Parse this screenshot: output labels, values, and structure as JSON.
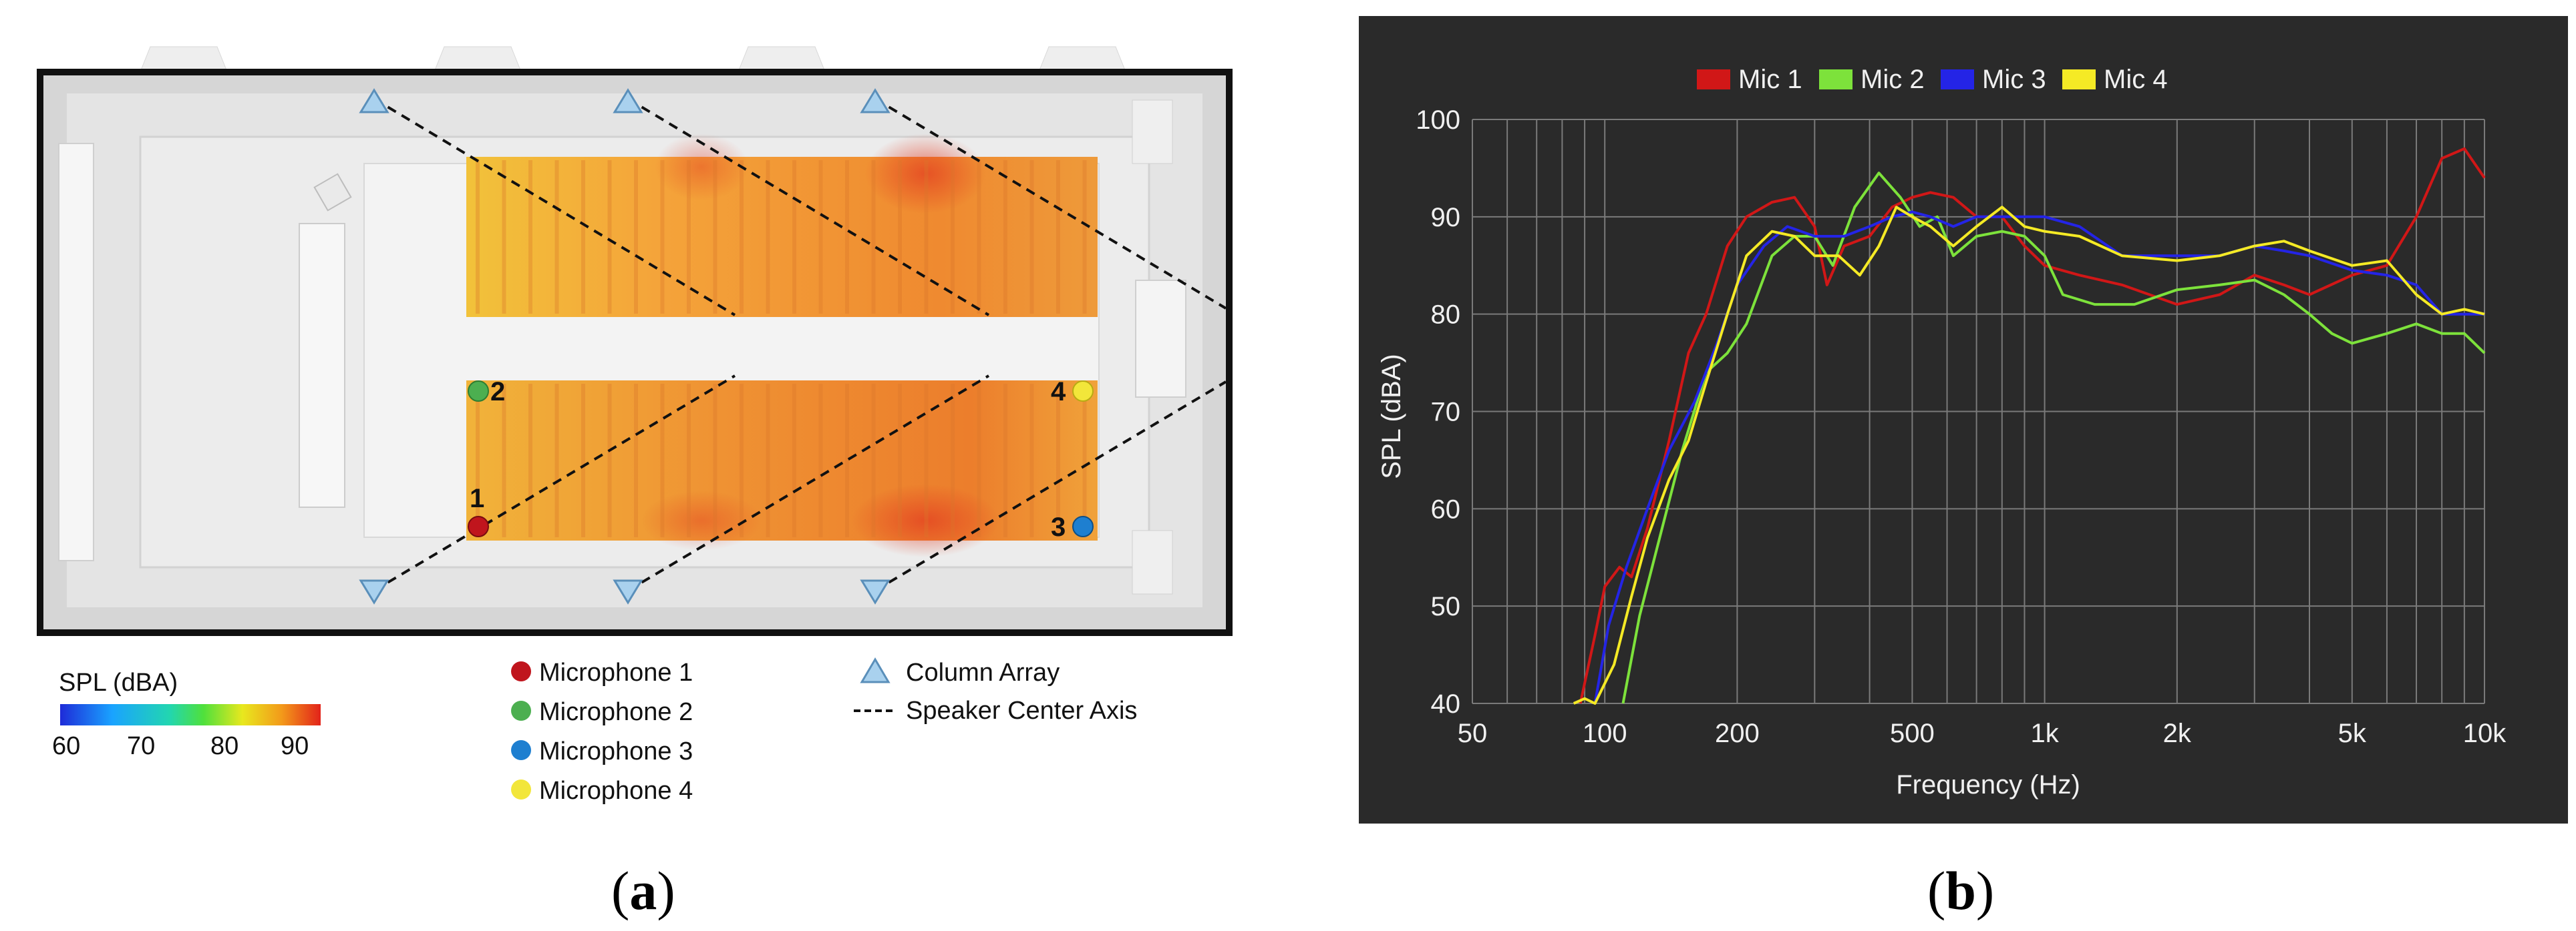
{
  "panels": {
    "a_label": "a",
    "b_label": "b"
  },
  "room": {
    "scale_title": "SPL (dBA)",
    "scale_ticks": [
      "60",
      "70",
      "80",
      "90"
    ],
    "mic_labels": [
      "1",
      "2",
      "3",
      "4"
    ],
    "legend": [
      {
        "label": "Microphone 1",
        "color": "#c0151d"
      },
      {
        "label": "Microphone 2",
        "color": "#4caf50"
      },
      {
        "label": "Microphone 3",
        "color": "#1e7fd0"
      },
      {
        "label": "Microphone 4",
        "color": "#f2e63a"
      }
    ],
    "legend_right": {
      "array": "Column Array",
      "axis": "Speaker Center Axis"
    }
  },
  "chart_data": {
    "type": "line",
    "xlabel": "Frequency (Hz)",
    "ylabel": "SPL (dBA)",
    "xscale": "log",
    "xlim": [
      50,
      10000
    ],
    "ylim": [
      40,
      100
    ],
    "x_ticks": [
      {
        "v": 50,
        "l": "50"
      },
      {
        "v": 100,
        "l": "100"
      },
      {
        "v": 200,
        "l": "200"
      },
      {
        "v": 500,
        "l": "500"
      },
      {
        "v": 1000,
        "l": "1k"
      },
      {
        "v": 2000,
        "l": "2k"
      },
      {
        "v": 5000,
        "l": "5k"
      },
      {
        "v": 10000,
        "l": "10k"
      }
    ],
    "y_ticks": [
      40,
      50,
      60,
      70,
      80,
      90,
      100
    ],
    "grid": true,
    "legend_position": "top",
    "series": [
      {
        "name": "Mic 1",
        "color": "#d11717",
        "points": [
          [
            88,
            40
          ],
          [
            95,
            47
          ],
          [
            100,
            52
          ],
          [
            108,
            54
          ],
          [
            115,
            53
          ],
          [
            125,
            58
          ],
          [
            140,
            67
          ],
          [
            155,
            76
          ],
          [
            170,
            80
          ],
          [
            190,
            87
          ],
          [
            210,
            90
          ],
          [
            240,
            91.5
          ],
          [
            270,
            92
          ],
          [
            300,
            89
          ],
          [
            320,
            83
          ],
          [
            350,
            87
          ],
          [
            400,
            88
          ],
          [
            450,
            91
          ],
          [
            500,
            92
          ],
          [
            550,
            92.5
          ],
          [
            620,
            92
          ],
          [
            700,
            90
          ],
          [
            800,
            90
          ],
          [
            900,
            87
          ],
          [
            1000,
            85
          ],
          [
            1200,
            84
          ],
          [
            1500,
            83
          ],
          [
            2000,
            81
          ],
          [
            2500,
            82
          ],
          [
            3000,
            84
          ],
          [
            3500,
            83
          ],
          [
            4000,
            82
          ],
          [
            5000,
            84
          ],
          [
            6000,
            85
          ],
          [
            7000,
            90
          ],
          [
            8000,
            96
          ],
          [
            9000,
            97
          ],
          [
            10000,
            94
          ]
        ]
      },
      {
        "name": "Mic 2",
        "color": "#7de23b",
        "points": [
          [
            110,
            40
          ],
          [
            120,
            49
          ],
          [
            135,
            58
          ],
          [
            150,
            66
          ],
          [
            170,
            74
          ],
          [
            190,
            76
          ],
          [
            210,
            79
          ],
          [
            240,
            86
          ],
          [
            270,
            88
          ],
          [
            300,
            88
          ],
          [
            330,
            85
          ],
          [
            370,
            91
          ],
          [
            420,
            94.5
          ],
          [
            470,
            92
          ],
          [
            520,
            89
          ],
          [
            570,
            90
          ],
          [
            620,
            86
          ],
          [
            700,
            88
          ],
          [
            800,
            88.5
          ],
          [
            900,
            88
          ],
          [
            1000,
            86
          ],
          [
            1100,
            82
          ],
          [
            1300,
            81
          ],
          [
            1600,
            81
          ],
          [
            2000,
            82.5
          ],
          [
            2500,
            83
          ],
          [
            3000,
            83.5
          ],
          [
            3500,
            82
          ],
          [
            4000,
            80
          ],
          [
            4500,
            78
          ],
          [
            5000,
            77
          ],
          [
            6000,
            78
          ],
          [
            7000,
            79
          ],
          [
            8000,
            78
          ],
          [
            9000,
            78
          ],
          [
            10000,
            76
          ]
        ]
      },
      {
        "name": "Mic 3",
        "color": "#2424e6",
        "points": [
          [
            95,
            40
          ],
          [
            102,
            48
          ],
          [
            112,
            54
          ],
          [
            125,
            60
          ],
          [
            140,
            66
          ],
          [
            160,
            71
          ],
          [
            180,
            77
          ],
          [
            200,
            83
          ],
          [
            230,
            87
          ],
          [
            260,
            89
          ],
          [
            300,
            88
          ],
          [
            350,
            88
          ],
          [
            400,
            89
          ],
          [
            450,
            90
          ],
          [
            500,
            90.5
          ],
          [
            550,
            90
          ],
          [
            620,
            89
          ],
          [
            700,
            90
          ],
          [
            800,
            90
          ],
          [
            900,
            90
          ],
          [
            1000,
            90
          ],
          [
            1200,
            89
          ],
          [
            1500,
            86
          ],
          [
            2000,
            86
          ],
          [
            2500,
            86
          ],
          [
            3000,
            87
          ],
          [
            3500,
            86.5
          ],
          [
            4000,
            86
          ],
          [
            5000,
            84.5
          ],
          [
            6000,
            84
          ],
          [
            7000,
            83
          ],
          [
            8000,
            80
          ],
          [
            9000,
            80
          ],
          [
            10000,
            80
          ]
        ]
      },
      {
        "name": "Mic 4",
        "color": "#f5ea25",
        "points": [
          [
            85,
            40
          ],
          [
            90,
            40.5
          ],
          [
            95,
            40
          ],
          [
            105,
            44
          ],
          [
            115,
            51
          ],
          [
            125,
            57
          ],
          [
            140,
            63
          ],
          [
            155,
            67
          ],
          [
            170,
            73
          ],
          [
            190,
            80
          ],
          [
            210,
            86
          ],
          [
            240,
            88.5
          ],
          [
            270,
            88
          ],
          [
            300,
            86
          ],
          [
            340,
            86
          ],
          [
            380,
            84
          ],
          [
            420,
            87
          ],
          [
            460,
            91
          ],
          [
            500,
            90
          ],
          [
            550,
            89
          ],
          [
            620,
            87
          ],
          [
            700,
            89
          ],
          [
            800,
            91
          ],
          [
            900,
            89
          ],
          [
            1000,
            88.5
          ],
          [
            1200,
            88
          ],
          [
            1500,
            86
          ],
          [
            2000,
            85.5
          ],
          [
            2500,
            86
          ],
          [
            3000,
            87
          ],
          [
            3500,
            87.5
          ],
          [
            4000,
            86.5
          ],
          [
            5000,
            85
          ],
          [
            6000,
            85.5
          ],
          [
            7000,
            82
          ],
          [
            8000,
            80
          ],
          [
            9000,
            80.5
          ],
          [
            10000,
            80
          ]
        ]
      }
    ]
  }
}
